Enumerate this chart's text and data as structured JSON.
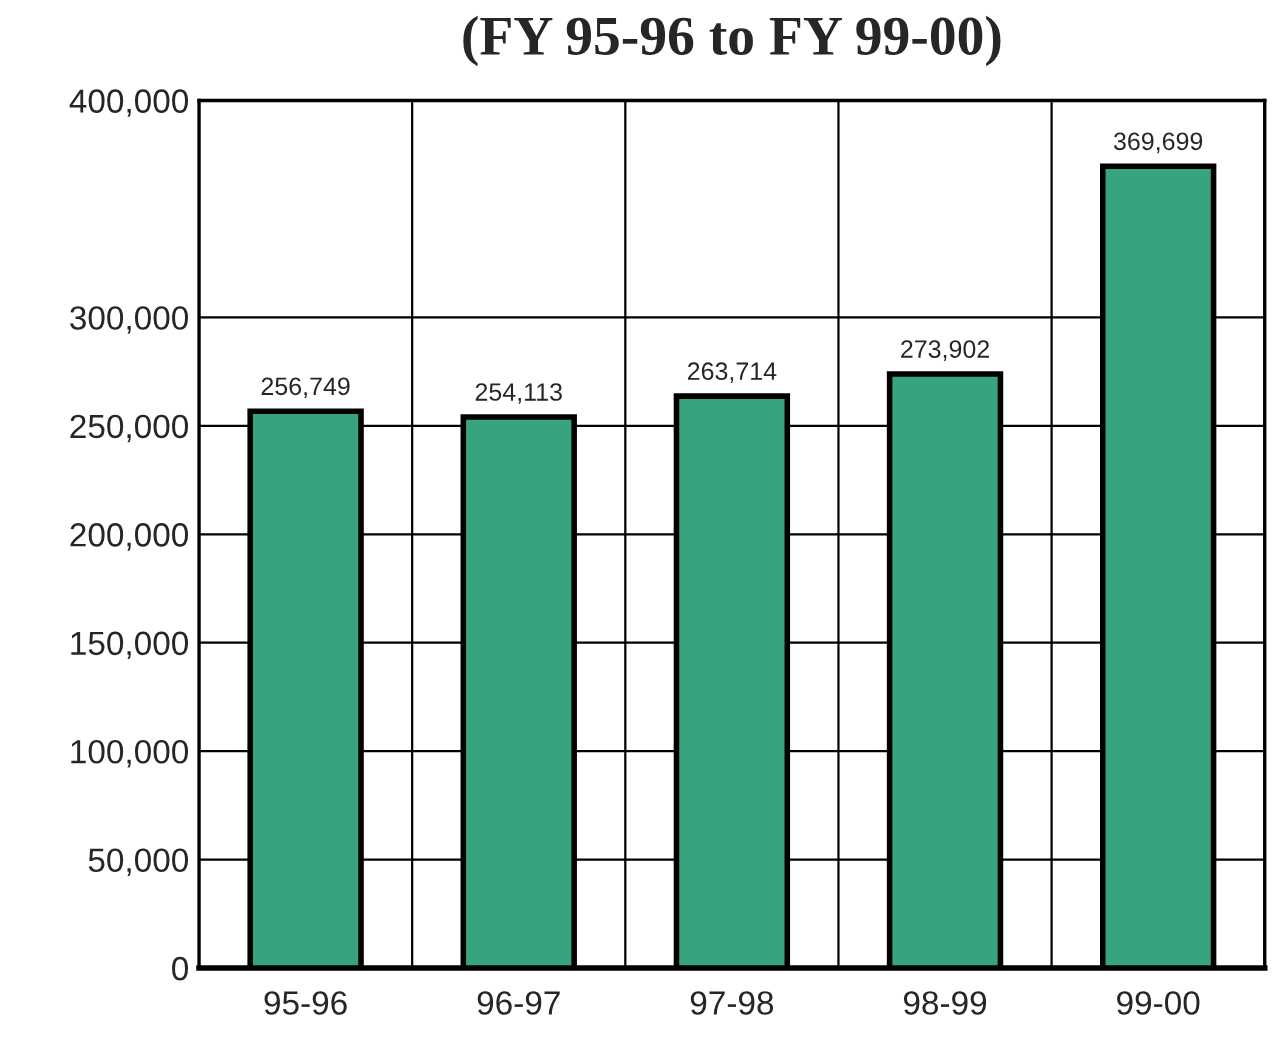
{
  "chart_data": {
    "type": "bar",
    "title": "(FY 95-96 to FY 99-00)",
    "categories": [
      "95-96",
      "96-97",
      "97-98",
      "98-99",
      "99-00"
    ],
    "values": [
      256749,
      254113,
      263714,
      273902,
      369699
    ],
    "color": "#38a47f",
    "ylim": [
      0,
      400000
    ],
    "yticks": [
      {
        "value": 0,
        "label": "0"
      },
      {
        "value": 50000,
        "label": "50,000"
      },
      {
        "value": 100000,
        "label": "100,000"
      },
      {
        "value": 150000,
        "label": "150,000"
      },
      {
        "value": 200000,
        "label": "200,000"
      },
      {
        "value": 250000,
        "label": "250,000"
      },
      {
        "value": 300000,
        "label": "300,000"
      },
      {
        "value": 400000,
        "label": "400,000"
      }
    ],
    "grid": true,
    "value_labels": [
      "256,749",
      "254,113",
      "263,714",
      "273,902",
      "369,699"
    ]
  }
}
